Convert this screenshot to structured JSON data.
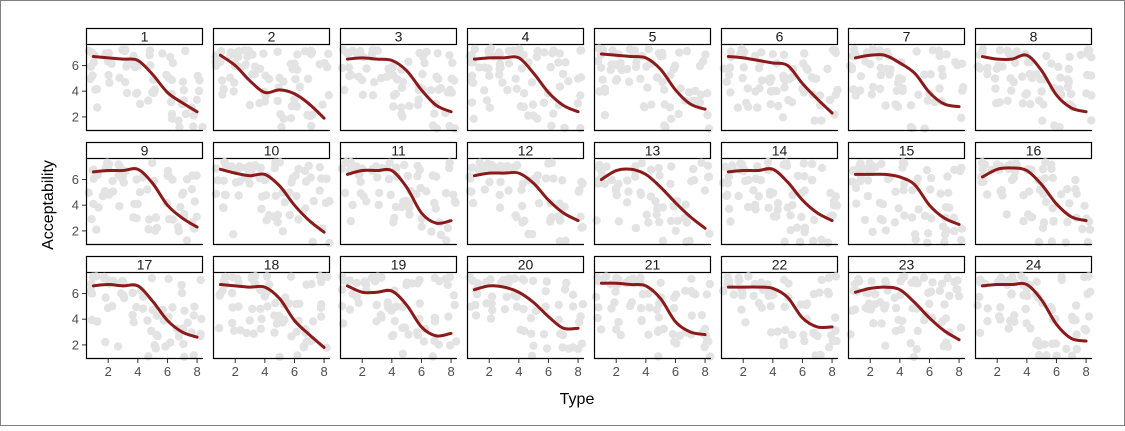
{
  "chart_data": {
    "type": "line",
    "title": "",
    "xlabel": "Type",
    "ylabel": "Acceptability",
    "xlim": [
      0.5,
      8.4
    ],
    "ylim": [
      0.9,
      7.6
    ],
    "x_ticks": [
      2,
      4,
      6,
      8
    ],
    "y_ticks": [
      2,
      4,
      6
    ],
    "grid": false,
    "legend": "none",
    "layout": {
      "rows": 3,
      "cols": 8
    },
    "colors": {
      "smooth_line": "#8b1a1a",
      "points": "#e3e3e3",
      "strip_fill": "#ffffff",
      "axis": "#000000"
    },
    "line_x": [
      1,
      2,
      3,
      4,
      5,
      6,
      7,
      8
    ],
    "panels": [
      {
        "label": "1",
        "line_y": [
          6.7,
          6.6,
          6.5,
          6.4,
          5.3,
          3.9,
          3.1,
          2.4
        ]
      },
      {
        "label": "2",
        "line_y": [
          6.8,
          6.0,
          4.8,
          3.9,
          4.1,
          3.8,
          3.0,
          1.9
        ]
      },
      {
        "label": "3",
        "line_y": [
          6.5,
          6.6,
          6.5,
          6.4,
          5.6,
          4.1,
          2.9,
          2.4
        ]
      },
      {
        "label": "4",
        "line_y": [
          6.5,
          6.6,
          6.6,
          6.6,
          5.4,
          3.9,
          2.9,
          2.4
        ]
      },
      {
        "label": "5",
        "line_y": [
          6.9,
          6.8,
          6.7,
          6.6,
          5.7,
          4.1,
          3.0,
          2.6
        ]
      },
      {
        "label": "6",
        "line_y": [
          6.7,
          6.6,
          6.4,
          6.2,
          6.0,
          4.6,
          3.4,
          2.3
        ]
      },
      {
        "label": "7",
        "line_y": [
          6.6,
          6.8,
          6.8,
          6.2,
          5.4,
          3.9,
          3.0,
          2.8
        ]
      },
      {
        "label": "8",
        "line_y": [
          6.7,
          6.5,
          6.5,
          6.8,
          5.6,
          3.7,
          2.7,
          2.4
        ]
      },
      {
        "label": "9",
        "line_y": [
          6.6,
          6.7,
          6.7,
          6.8,
          5.7,
          4.0,
          3.0,
          2.3
        ]
      },
      {
        "label": "10",
        "line_y": [
          6.8,
          6.5,
          6.3,
          6.4,
          5.5,
          4.0,
          2.8,
          1.9
        ]
      },
      {
        "label": "11",
        "line_y": [
          6.4,
          6.7,
          6.7,
          6.7,
          5.4,
          3.4,
          2.6,
          2.8
        ]
      },
      {
        "label": "12",
        "line_y": [
          6.3,
          6.5,
          6.5,
          6.5,
          5.7,
          4.4,
          3.4,
          2.8
        ]
      },
      {
        "label": "13",
        "line_y": [
          6.0,
          6.7,
          6.8,
          6.4,
          5.4,
          4.2,
          3.1,
          2.2
        ]
      },
      {
        "label": "14",
        "line_y": [
          6.6,
          6.7,
          6.7,
          6.8,
          5.8,
          4.4,
          3.4,
          2.8
        ]
      },
      {
        "label": "15",
        "line_y": [
          6.4,
          6.4,
          6.4,
          6.2,
          5.6,
          4.0,
          3.0,
          2.5
        ]
      },
      {
        "label": "16",
        "line_y": [
          6.2,
          6.8,
          6.9,
          6.7,
          5.6,
          4.1,
          3.1,
          2.8
        ]
      },
      {
        "label": "17",
        "line_y": [
          6.6,
          6.7,
          6.6,
          6.6,
          5.4,
          3.9,
          3.0,
          2.6
        ]
      },
      {
        "label": "18",
        "line_y": [
          6.7,
          6.6,
          6.5,
          6.5,
          5.6,
          3.9,
          2.8,
          1.8
        ]
      },
      {
        "label": "19",
        "line_y": [
          6.6,
          6.1,
          6.1,
          6.2,
          5.1,
          3.4,
          2.7,
          2.9
        ]
      },
      {
        "label": "20",
        "line_y": [
          6.3,
          6.6,
          6.5,
          6.1,
          5.3,
          4.2,
          3.3,
          3.3
        ]
      },
      {
        "label": "21",
        "line_y": [
          6.8,
          6.8,
          6.7,
          6.6,
          5.6,
          3.8,
          3.0,
          2.8
        ]
      },
      {
        "label": "22",
        "line_y": [
          6.5,
          6.5,
          6.5,
          6.4,
          5.7,
          4.1,
          3.4,
          3.4
        ]
      },
      {
        "label": "23",
        "line_y": [
          6.1,
          6.4,
          6.5,
          6.3,
          5.3,
          4.1,
          3.1,
          2.4
        ]
      },
      {
        "label": "24",
        "line_y": [
          6.6,
          6.7,
          6.7,
          6.7,
          5.5,
          3.6,
          2.5,
          2.3
        ]
      }
    ]
  }
}
